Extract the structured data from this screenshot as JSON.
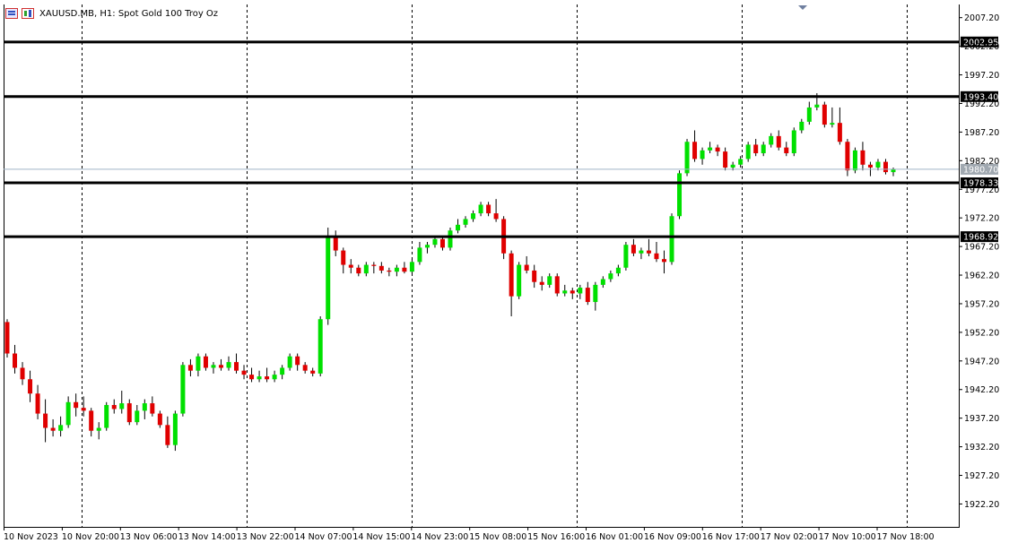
{
  "window": {
    "symbol": "XAUUSD.MB",
    "timeframe": "H1",
    "description": "Spot Gold 100 Troy Oz",
    "title": "XAUUSD.MB, H1:  Spot Gold 100 Troy Oz",
    "icons": [
      "chart-list-icon",
      "chart-properties-icon"
    ]
  },
  "colors": {
    "bull": "#00e000",
    "bear": "#e00000",
    "grid": "#000000",
    "level_line": "#000000",
    "current_price_line": "#a0b4c8",
    "background": "#ffffff"
  },
  "chart_data": {
    "type": "candlestick",
    "ylim": [
      1918.2,
      2009.5
    ],
    "price_ticks": [
      2007.2,
      2002.2,
      1997.2,
      1992.2,
      1987.2,
      1982.2,
      1977.2,
      1972.2,
      1967.2,
      1962.2,
      1957.2,
      1952.2,
      1947.2,
      1942.2,
      1937.2,
      1932.2,
      1927.2,
      1922.2
    ],
    "time_labels": [
      "10 Nov 2023",
      "10 Nov 20:00",
      "13 Nov 06:00",
      "13 Nov 14:00",
      "13 Nov 22:00",
      "14 Nov 07:00",
      "14 Nov 15:00",
      "14 Nov 23:00",
      "15 Nov 08:00",
      "15 Nov 16:00",
      "16 Nov 01:00",
      "16 Nov 09:00",
      "16 Nov 17:00",
      "17 Nov 02:00",
      "17 Nov 10:00",
      "17 Nov 18:00"
    ],
    "grid": true,
    "horizontal_levels": [
      2002.95,
      1993.4,
      1978.33,
      1968.92
    ],
    "current_price": 1980.7,
    "candles": [
      [
        1954.0,
        1954.5,
        1947.8,
        1948.5
      ],
      [
        1948.5,
        1950.0,
        1945.0,
        1946.0
      ],
      [
        1946.0,
        1947.0,
        1943.0,
        1944.0
      ],
      [
        1944.0,
        1945.5,
        1940.0,
        1941.5
      ],
      [
        1941.5,
        1943.0,
        1937.0,
        1938.0
      ],
      [
        1938.0,
        1940.5,
        1933.0,
        1935.5
      ],
      [
        1935.5,
        1937.0,
        1934.0,
        1935.0
      ],
      [
        1935.0,
        1937.5,
        1934.0,
        1936.0
      ],
      [
        1936.0,
        1941.0,
        1935.5,
        1940.0
      ],
      [
        1940.0,
        1941.5,
        1937.5,
        1939.0
      ],
      [
        1939.0,
        1941.0,
        1937.5,
        1938.5
      ],
      [
        1938.5,
        1939.0,
        1934.0,
        1935.0
      ],
      [
        1935.0,
        1936.5,
        1933.5,
        1935.5
      ],
      [
        1935.5,
        1940.0,
        1935.0,
        1939.5
      ],
      [
        1939.5,
        1940.5,
        1938.0,
        1938.8
      ],
      [
        1938.8,
        1942.0,
        1938.0,
        1939.8
      ],
      [
        1939.8,
        1940.5,
        1936.0,
        1936.5
      ],
      [
        1936.5,
        1939.5,
        1936.0,
        1938.5
      ],
      [
        1938.5,
        1940.5,
        1937.0,
        1939.8
      ],
      [
        1939.8,
        1941.0,
        1937.5,
        1938.0
      ],
      [
        1938.0,
        1938.5,
        1935.5,
        1936.0
      ],
      [
        1936.0,
        1937.5,
        1932.0,
        1932.5
      ],
      [
        1932.5,
        1938.5,
        1931.5,
        1938.0
      ],
      [
        1938.0,
        1947.0,
        1937.5,
        1946.5
      ],
      [
        1946.5,
        1947.5,
        1944.5,
        1945.5
      ],
      [
        1945.5,
        1948.5,
        1944.5,
        1948.0
      ],
      [
        1948.0,
        1948.5,
        1945.5,
        1946.0
      ],
      [
        1946.0,
        1947.0,
        1945.0,
        1946.5
      ],
      [
        1946.5,
        1947.5,
        1945.5,
        1946.0
      ],
      [
        1946.0,
        1948.0,
        1945.5,
        1947.0
      ],
      [
        1947.0,
        1948.5,
        1945.0,
        1945.5
      ],
      [
        1945.5,
        1946.5,
        1944.0,
        1944.8
      ],
      [
        1944.8,
        1946.0,
        1943.5,
        1944.0
      ],
      [
        1944.0,
        1945.5,
        1943.5,
        1944.5
      ],
      [
        1944.5,
        1946.0,
        1943.5,
        1944.0
      ],
      [
        1944.0,
        1945.5,
        1943.5,
        1944.8
      ],
      [
        1944.8,
        1946.5,
        1944.0,
        1946.0
      ],
      [
        1946.0,
        1948.5,
        1945.5,
        1948.0
      ],
      [
        1948.0,
        1948.5,
        1945.5,
        1946.5
      ],
      [
        1946.5,
        1947.0,
        1945.0,
        1945.5
      ],
      [
        1945.5,
        1946.0,
        1944.5,
        1945.0
      ],
      [
        1945.0,
        1955.0,
        1944.5,
        1954.5
      ],
      [
        1954.5,
        1970.5,
        1953.5,
        1969.0
      ],
      [
        1969.0,
        1970.0,
        1965.5,
        1966.5
      ],
      [
        1966.5,
        1967.0,
        1962.5,
        1964.0
      ],
      [
        1964.0,
        1965.0,
        1962.5,
        1963.5
      ],
      [
        1963.5,
        1964.0,
        1962.0,
        1962.5
      ],
      [
        1962.5,
        1964.5,
        1962.0,
        1964.0
      ],
      [
        1964.0,
        1964.5,
        1962.5,
        1963.8
      ],
      [
        1963.8,
        1964.5,
        1962.5,
        1963.0
      ],
      [
        1963.0,
        1963.5,
        1962.0,
        1962.8
      ],
      [
        1962.8,
        1964.0,
        1962.0,
        1963.5
      ],
      [
        1963.5,
        1964.5,
        1962.5,
        1962.8
      ],
      [
        1962.8,
        1965.0,
        1962.5,
        1964.5
      ],
      [
        1964.5,
        1968.0,
        1964.0,
        1967.0
      ],
      [
        1967.0,
        1968.0,
        1966.0,
        1967.5
      ],
      [
        1967.5,
        1969.0,
        1967.0,
        1968.5
      ],
      [
        1968.5,
        1969.0,
        1966.5,
        1967.0
      ],
      [
        1967.0,
        1970.5,
        1966.5,
        1970.0
      ],
      [
        1970.0,
        1972.0,
        1969.5,
        1971.0
      ],
      [
        1971.0,
        1972.5,
        1970.5,
        1972.0
      ],
      [
        1972.0,
        1973.5,
        1971.5,
        1973.0
      ],
      [
        1973.0,
        1975.0,
        1972.5,
        1974.5
      ],
      [
        1974.5,
        1975.0,
        1972.5,
        1973.0
      ],
      [
        1973.0,
        1975.5,
        1971.5,
        1972.0
      ],
      [
        1972.0,
        1972.5,
        1965.0,
        1966.0
      ],
      [
        1966.0,
        1966.5,
        1955.0,
        1958.5
      ],
      [
        1958.5,
        1964.5,
        1958.0,
        1964.0
      ],
      [
        1964.0,
        1965.5,
        1962.5,
        1963.0
      ],
      [
        1963.0,
        1964.0,
        1960.0,
        1961.0
      ],
      [
        1961.0,
        1962.0,
        1959.5,
        1960.5
      ],
      [
        1960.5,
        1962.5,
        1960.0,
        1962.0
      ],
      [
        1962.0,
        1962.5,
        1958.5,
        1959.0
      ],
      [
        1959.0,
        1960.5,
        1958.5,
        1959.5
      ],
      [
        1959.5,
        1960.0,
        1958.0,
        1959.0
      ],
      [
        1959.0,
        1960.5,
        1958.0,
        1960.0
      ],
      [
        1960.0,
        1961.0,
        1957.0,
        1957.5
      ],
      [
        1957.5,
        1961.0,
        1956.0,
        1960.5
      ],
      [
        1960.5,
        1962.0,
        1960.0,
        1961.5
      ],
      [
        1961.5,
        1963.0,
        1961.0,
        1962.5
      ],
      [
        1962.5,
        1964.0,
        1962.0,
        1963.5
      ],
      [
        1963.5,
        1968.0,
        1963.0,
        1967.5
      ],
      [
        1967.5,
        1968.5,
        1965.5,
        1966.0
      ],
      [
        1966.0,
        1967.0,
        1965.0,
        1966.5
      ],
      [
        1966.5,
        1968.5,
        1965.5,
        1966.0
      ],
      [
        1966.0,
        1968.0,
        1964.5,
        1965.0
      ],
      [
        1965.0,
        1966.5,
        1962.5,
        1964.5
      ],
      [
        1964.5,
        1973.0,
        1964.0,
        1972.5
      ],
      [
        1972.5,
        1980.5,
        1972.0,
        1980.0
      ],
      [
        1980.0,
        1986.0,
        1979.5,
        1985.5
      ],
      [
        1985.5,
        1987.5,
        1982.0,
        1982.5
      ],
      [
        1982.5,
        1984.5,
        1981.5,
        1984.0
      ],
      [
        1984.0,
        1985.5,
        1983.5,
        1984.5
      ],
      [
        1984.5,
        1985.0,
        1983.0,
        1983.8
      ],
      [
        1983.8,
        1984.5,
        1980.5,
        1981.0
      ],
      [
        1981.0,
        1982.0,
        1980.5,
        1981.5
      ],
      [
        1981.5,
        1983.0,
        1981.0,
        1982.5
      ],
      [
        1982.5,
        1985.5,
        1982.0,
        1985.0
      ],
      [
        1985.0,
        1986.0,
        1983.0,
        1983.5
      ],
      [
        1983.5,
        1985.5,
        1983.0,
        1985.0
      ],
      [
        1985.0,
        1987.0,
        1984.5,
        1986.5
      ],
      [
        1986.5,
        1987.5,
        1984.0,
        1984.5
      ],
      [
        1984.5,
        1985.5,
        1983.0,
        1983.5
      ],
      [
        1983.5,
        1988.0,
        1983.0,
        1987.5
      ],
      [
        1987.5,
        1989.5,
        1987.0,
        1989.0
      ],
      [
        1989.0,
        1992.5,
        1988.5,
        1991.5
      ],
      [
        1991.5,
        1994.0,
        1991.0,
        1992.0
      ],
      [
        1992.0,
        1992.5,
        1988.0,
        1988.5
      ],
      [
        1988.5,
        1991.5,
        1988.0,
        1988.8
      ],
      [
        1988.8,
        1991.5,
        1985.0,
        1985.5
      ],
      [
        1985.5,
        1986.0,
        1979.5,
        1980.5
      ],
      [
        1980.5,
        1984.5,
        1980.0,
        1984.0
      ],
      [
        1984.0,
        1985.5,
        1980.5,
        1981.5
      ],
      [
        1981.5,
        1982.0,
        1979.5,
        1981.0
      ],
      [
        1981.0,
        1982.5,
        1980.5,
        1982.0
      ],
      [
        1982.0,
        1982.5,
        1979.8,
        1980.2
      ],
      [
        1980.2,
        1981.0,
        1979.5,
        1980.7
      ]
    ]
  }
}
